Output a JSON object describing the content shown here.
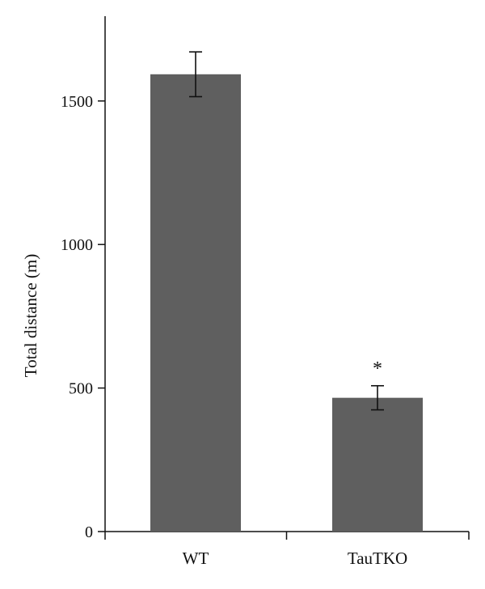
{
  "chart_data": {
    "type": "bar",
    "categories": [
      "WT",
      "TauTKO"
    ],
    "values": [
      1593,
      466
    ],
    "error": [
      78,
      42
    ],
    "annotations": [
      "",
      "*"
    ],
    "ylabel": "Total distance (m)",
    "xlabel": "",
    "ylim": [
      0,
      1800
    ],
    "yticks": [
      "0",
      "500",
      "1000",
      "1500"
    ],
    "bar_color": "#5f5f5f",
    "grid": false,
    "legend": "none"
  }
}
